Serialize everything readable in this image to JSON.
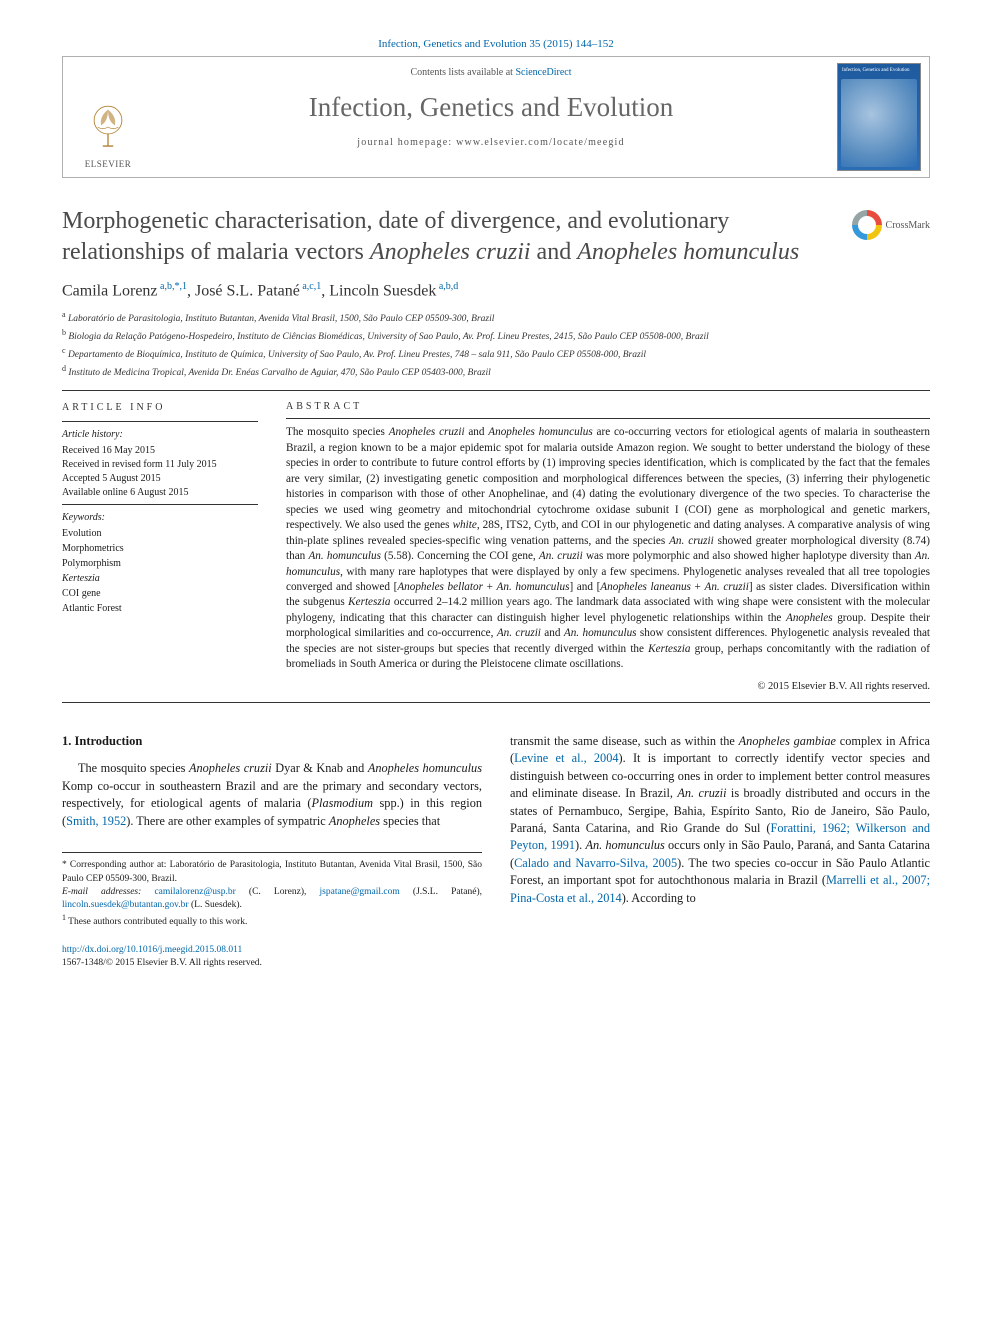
{
  "header": {
    "top_ref": "Infection, Genetics and Evolution 35 (2015) 144–152",
    "contents_prefix": "Contents lists available at ",
    "contents_link": "ScienceDirect",
    "journal_name": "Infection, Genetics and Evolution",
    "homepage_label": "journal homepage: www.elsevier.com/locate/meegid",
    "publisher": "ELSEVIER",
    "cover_text": "Infection, Genetics and Evolution"
  },
  "crossmark_label": "CrossMark",
  "title_html": "Morphogenetic characterisation, date of divergence, and evolutionary relationships of malaria vectors <em>Anopheles cruzii</em> and <em>Anopheles homunculus</em>",
  "authors_html": "Camila Lorenz<sup> a,b,*,1</sup>, José S.L. Patané<sup> a,c,1</sup>, Lincoln Suesdek<sup> a,b,d</sup>",
  "affiliations": [
    "a Laboratório de Parasitologia, Instituto Butantan, Avenida Vital Brasil, 1500, São Paulo CEP 05509-300, Brazil",
    "b Biologia da Relação Patógeno-Hospedeiro, Instituto de Ciências Biomédicas, University of Sao Paulo, Av. Prof. Lineu Prestes, 2415, São Paulo CEP 05508-000, Brazil",
    "c Departamento de Bioquímica, Instituto de Química, University of Sao Paulo, Av. Prof. Lineu Prestes, 748 – sala 911, São Paulo CEP 05508-000, Brazil",
    "d Instituto de Medicina Tropical, Avenida Dr. Enéas Carvalho de Aguiar, 470, São Paulo CEP 05403-000, Brazil"
  ],
  "article_info": {
    "head": "ARTICLE INFO",
    "history_label": "Article history:",
    "history": [
      "Received 16 May 2015",
      "Received in revised form 11 July 2015",
      "Accepted 5 August 2015",
      "Available online 6 August 2015"
    ],
    "keywords_label": "Keywords:",
    "keywords": [
      "Evolution",
      "Morphometrics",
      "Polymorphism",
      "Kerteszia",
      "COI gene",
      "Atlantic Forest"
    ]
  },
  "abstract": {
    "head": "ABSTRACT",
    "text_html": "The mosquito species <em>Anopheles cruzii</em> and <em>Anopheles homunculus</em> are co-occurring vectors for etiological agents of malaria in southeastern Brazil, a region known to be a major epidemic spot for malaria outside Amazon region. We sought to better understand the biology of these species in order to contribute to future control efforts by (1) improving species identification, which is complicated by the fact that the females are very similar, (2) investigating genetic composition and morphological differences between the species, (3) inferring their phylogenetic histories in comparison with those of other Anophelinae, and (4) dating the evolutionary divergence of the two species. To characterise the species we used wing geometry and mitochondrial cytochrome oxidase subunit I (COI) gene as morphological and genetic markers, respectively. We also used the genes <em>white</em>, 28S, ITS2, Cytb, and COI in our phylogenetic and dating analyses. A comparative analysis of wing thin-plate splines revealed species-specific wing venation patterns, and the species <em>An. cruzii</em> showed greater morphological diversity (8.74) than <em>An. homunculus</em> (5.58). Concerning the COI gene, <em>An. cruzii</em> was more polymorphic and also showed higher haplotype diversity than <em>An. homunculus</em>, with many rare haplotypes that were displayed by only a few specimens. Phylogenetic analyses revealed that all tree topologies converged and showed [<em>Anopheles bellator</em> + <em>An. homunculus</em>] and [<em>Anopheles laneanus</em> + <em>An. cruzii</em>] as sister clades. Diversification within the subgenus <em>Kerteszia</em> occurred 2–14.2 million years ago. The landmark data associated with wing shape were consistent with the molecular phylogeny, indicating that this character can distinguish higher level phylogenetic relationships within the <em>Anopheles</em> group. Despite their morphological similarities and co-occurrence, <em>An. cruzii</em> and <em>An. homunculus</em> show consistent differences. Phylogenetic analysis revealed that the species are not sister-groups but species that recently diverged within the <em>Kerteszia</em> group, perhaps concomitantly with the radiation of bromeliads in South America or during the Pleistocene climate oscillations.",
    "copyright": "© 2015 Elsevier B.V. All rights reserved."
  },
  "section1": {
    "head": "1. Introduction",
    "p1_html": "The mosquito species <em>Anopheles cruzii</em> Dyar &amp; Knab and <em>Anopheles homunculus</em> Komp co-occur in southeastern Brazil and are the primary and secondary vectors, respectively, for etiological agents of malaria (<em>Plasmodium</em> spp.) in this region (<span class='cite'>Smith, 1952</span>). There are other examples of sympatric <em>Anopheles</em> species that",
    "p2_html": "transmit the same disease, such as within the <em>Anopheles gambiae</em> complex in Africa (<span class='cite'>Levine et al., 2004</span>). It is important to correctly identify vector species and distinguish between co-occurring ones in order to implement better control measures and eliminate disease. In Brazil, <em>An. cruzii</em> is broadly distributed and occurs in the states of Pernambuco, Sergipe, Bahia, Espírito Santo, Rio de Janeiro, São Paulo, Paraná, Santa Catarina, and Rio Grande do Sul (<span class='cite'>Forattini, 1962; Wilkerson and Peyton, 1991</span>). <em>An. homunculus</em> occurs only in São Paulo, Paraná, and Santa Catarina (<span class='cite'>Calado and Navarro-Silva, 2005</span>). The two species co-occur in São Paulo Atlantic Forest, an important spot for autochthonous malaria in Brazil (<span class='cite'>Marrelli et al., 2007; Pina-Costa et al., 2014</span>). According to"
  },
  "footnotes": {
    "corresponding": "* Corresponding author at: Laboratório de Parasitologia, Instituto Butantan, Avenida Vital Brasil, 1500, São Paulo CEP 05509-300, Brazil.",
    "emails_label": "E-mail addresses:",
    "emails_html": "<a>camilalorenz@usp.br</a> (C. Lorenz), <a>jspatane@gmail.com</a> (J.S.L. Patané), <a>lincoln.suesdek@butantan.gov.br</a> (L. Suesdek).",
    "equal": "1 These authors contributed equally to this work."
  },
  "doi": {
    "link": "http://dx.doi.org/10.1016/j.meegid.2015.08.011",
    "issn_line": "1567-1348/© 2015 Elsevier B.V. All rights reserved."
  },
  "colors": {
    "link": "#0066aa",
    "text": "#1a1a1a",
    "muted": "#555555",
    "rule": "#333333",
    "cover_grad_top": "#1e5a9e",
    "cover_grad_bot": "#2b6db5"
  }
}
